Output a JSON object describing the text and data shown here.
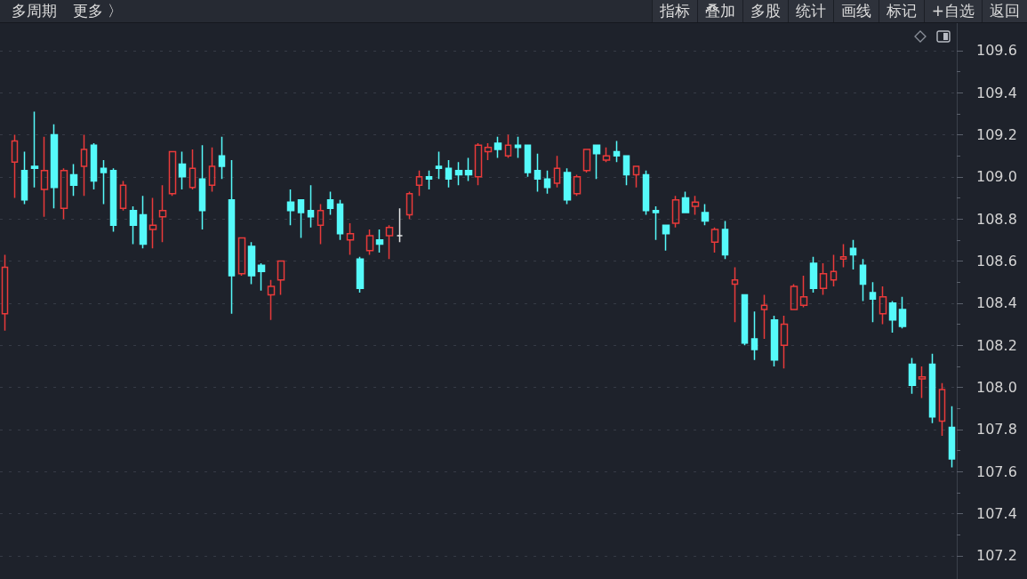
{
  "chart_data": {
    "type": "candlestick",
    "annotations": [
      "多周期",
      "更多 〉",
      "指标",
      "叠加",
      "多股",
      "统计",
      "画线",
      "标记",
      "+自选",
      "返回"
    ],
    "categories": [
      null,
      null,
      null,
      null,
      null,
      null,
      null,
      null,
      null,
      null,
      null,
      null,
      null,
      null,
      null,
      null,
      null,
      null,
      null,
      null,
      null,
      null,
      null,
      null,
      null,
      null,
      null,
      null,
      null,
      null,
      null,
      null,
      null,
      null,
      null,
      null,
      null,
      null,
      null,
      null,
      null,
      null,
      null,
      null,
      null,
      null,
      null,
      null,
      null,
      null,
      null,
      null,
      null,
      null,
      null,
      null,
      null,
      null,
      null,
      null,
      null,
      null,
      null,
      null,
      null,
      null,
      null,
      null,
      null,
      null,
      null,
      null,
      null,
      null,
      null,
      null,
      null,
      null,
      null,
      null,
      null,
      null,
      null,
      null,
      null,
      null,
      null,
      null,
      null,
      null,
      null,
      null,
      null,
      null,
      null,
      null,
      null
    ],
    "ohlc": [
      [
        108.35,
        108.63,
        108.27,
        108.57
      ],
      [
        109.07,
        109.2,
        108.9,
        109.17
      ],
      [
        109.03,
        109.12,
        108.87,
        108.89
      ],
      [
        109.05,
        109.31,
        108.95,
        109.04
      ],
      [
        108.94,
        109.19,
        108.81,
        109.03
      ],
      [
        109.2,
        109.25,
        108.85,
        108.95
      ],
      [
        108.85,
        109.04,
        108.8,
        109.03
      ],
      [
        109.01,
        109.06,
        108.91,
        108.96
      ],
      [
        109.05,
        109.2,
        108.91,
        109.13
      ],
      [
        109.15,
        109.16,
        108.94,
        108.98
      ],
      [
        109.04,
        109.08,
        108.87,
        109.02
      ],
      [
        109.03,
        109.04,
        108.74,
        108.77
      ],
      [
        108.85,
        108.98,
        108.84,
        108.96
      ],
      [
        108.84,
        108.86,
        108.68,
        108.77
      ],
      [
        108.82,
        108.91,
        108.66,
        108.68
      ],
      [
        108.75,
        108.9,
        108.66,
        108.77
      ],
      [
        108.81,
        108.96,
        108.69,
        108.84
      ],
      [
        108.92,
        109.12,
        108.91,
        109.12
      ],
      [
        109.06,
        109.12,
        108.94,
        109.0
      ],
      [
        108.95,
        109.13,
        108.94,
        109.04
      ],
      [
        108.99,
        109.15,
        108.75,
        108.84
      ],
      [
        108.96,
        109.14,
        108.93,
        109.05
      ],
      [
        109.1,
        109.19,
        108.99,
        109.05
      ],
      [
        108.89,
        109.08,
        108.35,
        108.53
      ],
      [
        108.54,
        108.71,
        108.53,
        108.71
      ],
      [
        108.67,
        108.69,
        108.49,
        108.53
      ],
      [
        108.58,
        108.59,
        108.46,
        108.55
      ],
      [
        108.44,
        108.51,
        108.32,
        108.48
      ],
      [
        108.51,
        108.6,
        108.44,
        108.6
      ],
      [
        108.88,
        108.94,
        108.77,
        108.84
      ],
      [
        108.89,
        108.89,
        108.71,
        108.83
      ],
      [
        108.84,
        108.96,
        108.76,
        108.81
      ],
      [
        108.77,
        108.87,
        108.68,
        108.84
      ],
      [
        108.89,
        108.93,
        108.82,
        108.85
      ],
      [
        108.87,
        108.89,
        108.7,
        108.73
      ],
      [
        108.7,
        108.78,
        108.63,
        108.73
      ],
      [
        108.61,
        108.62,
        108.45,
        108.47
      ],
      [
        108.65,
        108.75,
        108.63,
        108.72
      ],
      [
        108.7,
        108.75,
        108.64,
        108.68
      ],
      [
        108.72,
        108.77,
        108.61,
        108.76
      ],
      [
        108.72,
        108.85,
        108.69,
        108.72
      ],
      [
        108.82,
        108.93,
        108.8,
        108.92
      ],
      [
        108.96,
        109.03,
        108.91,
        109.0
      ],
      [
        109.0,
        109.03,
        108.94,
        108.99
      ],
      [
        109.05,
        109.12,
        108.99,
        109.04
      ],
      [
        109.04,
        109.08,
        108.95,
        108.99
      ],
      [
        109.03,
        109.07,
        108.96,
        109.01
      ],
      [
        109.03,
        109.09,
        108.98,
        109.01
      ],
      [
        109.0,
        109.16,
        108.96,
        109.15
      ],
      [
        109.12,
        109.16,
        109.08,
        109.14
      ],
      [
        109.16,
        109.19,
        109.09,
        109.13
      ],
      [
        109.1,
        109.2,
        109.09,
        109.15
      ],
      [
        109.15,
        109.19,
        109.09,
        109.14
      ],
      [
        109.15,
        109.15,
        109.0,
        109.02
      ],
      [
        109.03,
        109.11,
        108.93,
        108.99
      ],
      [
        108.99,
        109.03,
        108.92,
        108.95
      ],
      [
        108.97,
        109.1,
        108.95,
        109.04
      ],
      [
        109.02,
        109.04,
        108.87,
        108.89
      ],
      [
        108.92,
        109.01,
        108.91,
        109.0
      ],
      [
        109.03,
        109.13,
        109.02,
        109.13
      ],
      [
        109.15,
        109.15,
        108.99,
        109.11
      ],
      [
        109.08,
        109.14,
        109.07,
        109.1
      ],
      [
        109.12,
        109.17,
        109.07,
        109.1
      ],
      [
        109.1,
        109.1,
        108.96,
        109.01
      ],
      [
        109.01,
        109.05,
        108.95,
        109.05
      ],
      [
        109.01,
        109.03,
        108.82,
        108.84
      ],
      [
        108.84,
        108.86,
        108.7,
        108.83
      ],
      [
        108.77,
        108.77,
        108.65,
        108.73
      ],
      [
        108.78,
        108.91,
        108.76,
        108.89
      ],
      [
        108.9,
        108.93,
        108.83,
        108.83
      ],
      [
        108.86,
        108.91,
        108.82,
        108.88
      ],
      [
        108.83,
        108.87,
        108.77,
        108.79
      ],
      [
        108.69,
        108.76,
        108.64,
        108.75
      ],
      [
        108.75,
        108.79,
        108.61,
        108.63
      ],
      [
        108.49,
        108.57,
        108.31,
        108.51
      ],
      [
        108.44,
        108.44,
        108.2,
        108.21
      ],
      [
        108.23,
        108.36,
        108.13,
        108.18
      ],
      [
        108.37,
        108.44,
        108.23,
        108.39
      ],
      [
        108.32,
        108.34,
        108.1,
        108.13
      ],
      [
        108.2,
        108.34,
        108.09,
        108.3
      ],
      [
        108.37,
        108.49,
        108.37,
        108.48
      ],
      [
        108.39,
        108.53,
        108.38,
        108.43
      ],
      [
        108.59,
        108.62,
        108.45,
        108.47
      ],
      [
        108.47,
        108.59,
        108.44,
        108.54
      ],
      [
        108.51,
        108.63,
        108.48,
        108.55
      ],
      [
        108.61,
        108.68,
        108.57,
        108.62
      ],
      [
        108.66,
        108.7,
        108.56,
        108.63
      ],
      [
        108.58,
        108.61,
        108.41,
        108.49
      ],
      [
        108.45,
        108.5,
        108.31,
        108.42
      ],
      [
        108.35,
        108.48,
        108.3,
        108.43
      ],
      [
        108.4,
        108.41,
        108.26,
        108.32
      ],
      [
        108.37,
        108.43,
        108.28,
        108.29
      ],
      [
        108.11,
        108.14,
        107.97,
        108.01
      ],
      [
        108.04,
        108.1,
        107.95,
        108.05
      ],
      [
        108.11,
        108.16,
        107.83,
        107.86
      ],
      [
        107.84,
        108.02,
        107.77,
        107.99
      ],
      [
        107.81,
        107.91,
        107.62,
        107.66
      ]
    ],
    "colors": [
      "#e93a3a",
      "#e93a3a",
      "#55fafa",
      "#55fafa",
      "#e93a3a",
      "#55fafa",
      "#e93a3a",
      "#55fafa",
      "#e93a3a",
      "#55fafa",
      "#55fafa",
      "#55fafa",
      "#e93a3a",
      "#55fafa",
      "#55fafa",
      "#e93a3a",
      "#e93a3a",
      "#e93a3a",
      "#55fafa",
      "#e93a3a",
      "#55fafa",
      "#e93a3a",
      "#55fafa",
      "#55fafa",
      "#e93a3a",
      "#55fafa",
      "#55fafa",
      "#e93a3a",
      "#e93a3a",
      "#55fafa",
      "#55fafa",
      "#55fafa",
      "#e93a3a",
      "#55fafa",
      "#55fafa",
      "#e93a3a",
      "#55fafa",
      "#e93a3a",
      "#55fafa",
      "#e93a3a",
      "#e6e6e6",
      "#e93a3a",
      "#e93a3a",
      "#55fafa",
      "#55fafa",
      "#55fafa",
      "#55fafa",
      "#55fafa",
      "#e93a3a",
      "#e93a3a",
      "#55fafa",
      "#e93a3a",
      "#55fafa",
      "#55fafa",
      "#55fafa",
      "#55fafa",
      "#e93a3a",
      "#55fafa",
      "#e93a3a",
      "#e93a3a",
      "#55fafa",
      "#e93a3a",
      "#55fafa",
      "#55fafa",
      "#e93a3a",
      "#55fafa",
      "#55fafa",
      "#55fafa",
      "#e93a3a",
      "#55fafa",
      "#e93a3a",
      "#55fafa",
      "#e93a3a",
      "#55fafa",
      "#e93a3a",
      "#55fafa",
      "#55fafa",
      "#e93a3a",
      "#55fafa",
      "#e93a3a",
      "#e93a3a",
      "#e93a3a",
      "#55fafa",
      "#e93a3a",
      "#e93a3a",
      "#e93a3a",
      "#55fafa",
      "#55fafa",
      "#55fafa",
      "#e93a3a",
      "#55fafa",
      "#55fafa",
      "#55fafa",
      "#e93a3a",
      "#55fafa",
      "#e93a3a",
      "#55fafa"
    ],
    "ylim": [
      107.09,
      109.73
    ],
    "yticks": [
      107.2,
      {
        "value": 107.3,
        "label": null
      },
      107.4,
      {
        "value": 107.5,
        "label": null
      },
      107.6,
      {
        "value": 107.7,
        "label": null
      },
      107.8,
      {
        "value": 107.9,
        "label": null
      },
      {
        "value": 108,
        "label": "108.0"
      },
      {
        "value": 108.1,
        "label": null
      },
      108.2,
      {
        "value": 108.3,
        "label": null
      },
      108.4,
      {
        "value": 108.5,
        "label": null
      },
      108.6,
      {
        "value": 108.7,
        "label": null
      },
      108.8,
      {
        "value": 108.9,
        "label": null
      },
      {
        "value": 109,
        "label": "109.0"
      },
      {
        "value": 109.1,
        "label": null
      },
      109.2,
      {
        "value": 109.3,
        "label": null
      },
      109.4,
      {
        "value": 109.5,
        "label": null
      },
      109.6
    ],
    "grid": "y",
    "tick_labels": "y"
  }
}
